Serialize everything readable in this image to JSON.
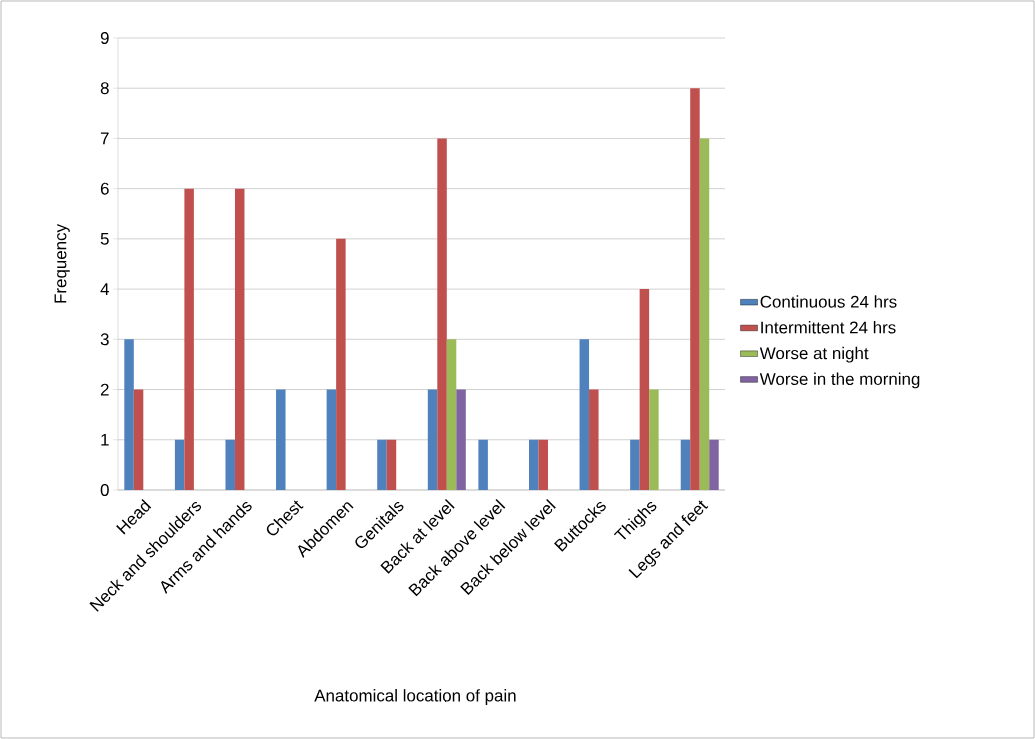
{
  "chart_data": {
    "type": "bar",
    "xlabel": "Anatomical location of pain",
    "ylabel": "Frequency",
    "categories": [
      "Head",
      "Neck and shoulders",
      "Arms and hands",
      "Chest",
      "Abdomen",
      "Genitals",
      "Back at level",
      "Back above level",
      "Back below level",
      "Buttocks",
      "Thighs",
      "Legs and feet"
    ],
    "series": [
      {
        "name": "Continuous 24 hrs",
        "color": "#4f81bd",
        "values": [
          3,
          1,
          1,
          2,
          2,
          1,
          2,
          1,
          1,
          3,
          1,
          1
        ]
      },
      {
        "name": "Intermittent 24 hrs",
        "color": "#c0504d",
        "values": [
          2,
          6,
          6,
          0,
          5,
          1,
          7,
          0,
          1,
          2,
          4,
          8
        ]
      },
      {
        "name": "Worse at night",
        "color": "#9bbb59",
        "values": [
          0,
          0,
          0,
          0,
          0,
          0,
          3,
          0,
          0,
          0,
          2,
          7
        ]
      },
      {
        "name": "Worse in the morning",
        "color": "#8064a2",
        "values": [
          0,
          0,
          0,
          0,
          0,
          0,
          2,
          0,
          0,
          0,
          0,
          1
        ]
      }
    ],
    "ylim": [
      0,
      9
    ],
    "yticks": [
      0,
      1,
      2,
      3,
      4,
      5,
      6,
      7,
      8,
      9
    ],
    "grid": "y",
    "legend": "right"
  }
}
